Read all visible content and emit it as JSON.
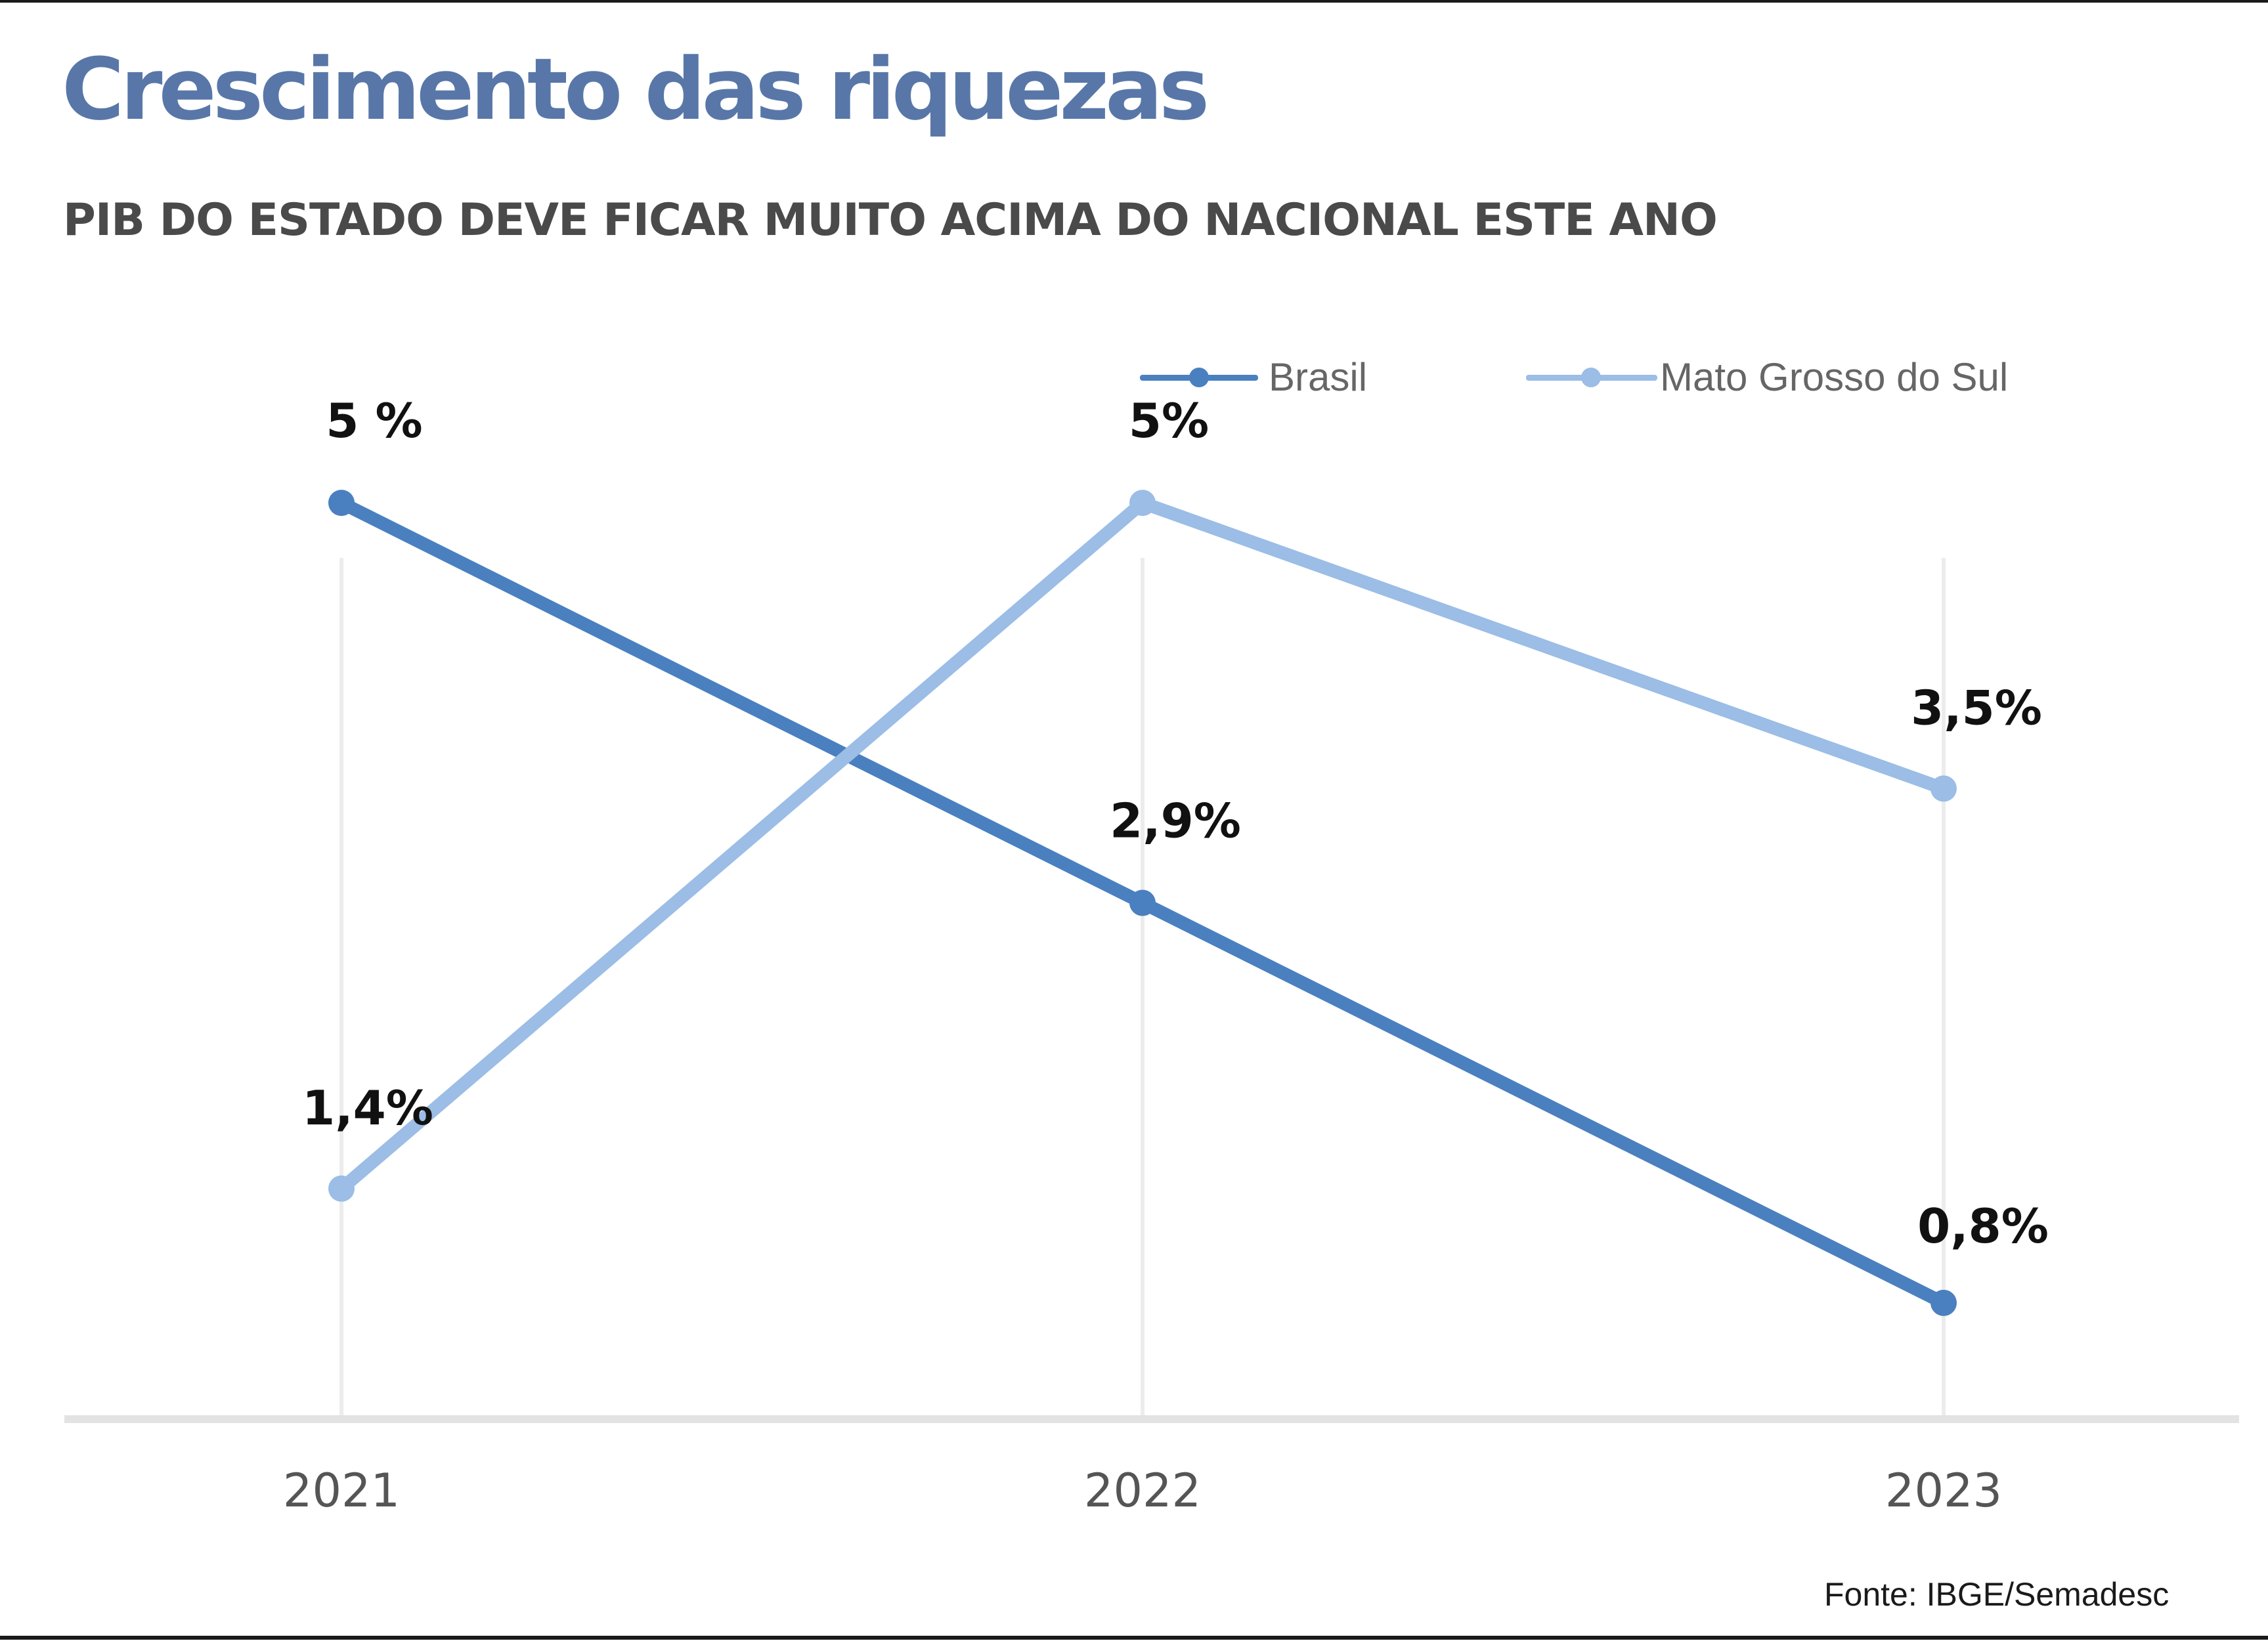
{
  "chart_data": {
    "type": "line",
    "title": "Crescimento das riquezas",
    "subtitle": "PIB DO ESTADO DEVE FICAR MUITO ACIMA DO NACIONAL ESTE ANO",
    "categories": [
      "2021",
      "2022",
      "2023"
    ],
    "series": [
      {
        "name": "Brasil",
        "color": "#4a80bf",
        "values": [
          5.0,
          2.9,
          0.8
        ],
        "labels": [
          "5 %",
          "2,9%",
          "0,8%"
        ]
      },
      {
        "name": "Mato Grosso do Sul",
        "color": "#9bbde6",
        "values": [
          1.4,
          5.0,
          3.5
        ],
        "labels": [
          "1,4%",
          "5%",
          "3,5%"
        ]
      }
    ],
    "ylim": [
      0.3,
      5.4
    ],
    "grid": "vertical",
    "legend": "top-right",
    "source": "Fonte: IBGE/Semadesc"
  }
}
